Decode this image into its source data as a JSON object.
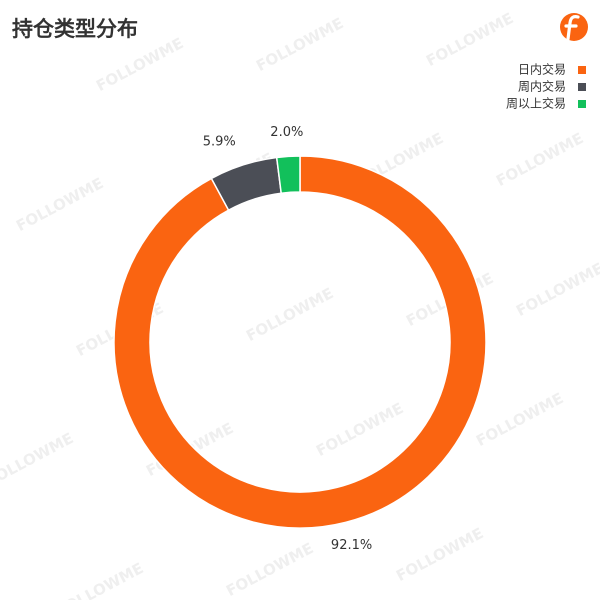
{
  "chart_data": {
    "type": "pie",
    "title": "持仓类型分布",
    "categories": [
      "日内交易",
      "周内交易",
      "周以上交易"
    ],
    "values": [
      92.1,
      5.9,
      2.0
    ],
    "value_labels": [
      "92.1%",
      "5.9%",
      "2.0%"
    ],
    "colors": [
      "#fa6411",
      "#4b4e56",
      "#12c05b"
    ],
    "legend": "top-right",
    "watermark": "FOLLOWME"
  }
}
